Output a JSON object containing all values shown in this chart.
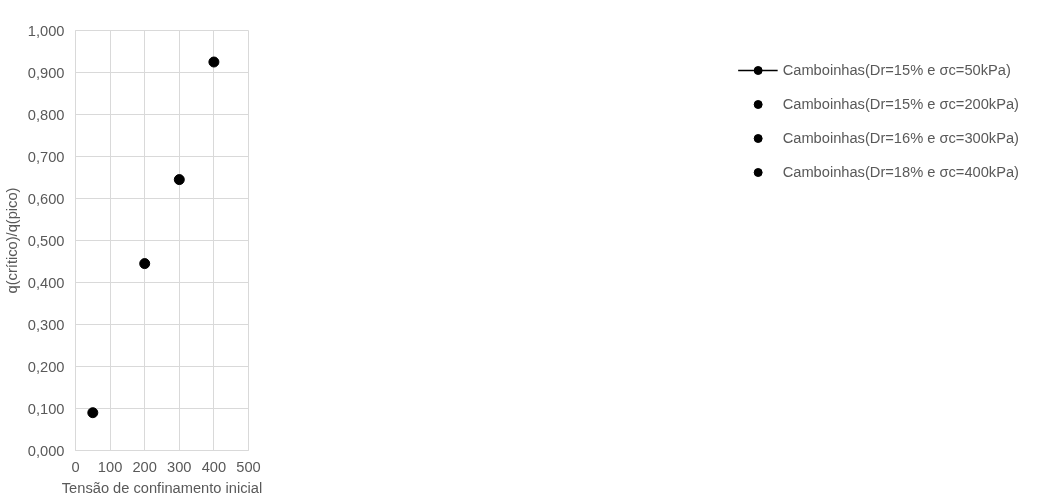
{
  "chart_data": {
    "type": "scatter",
    "xlabel": "Tensão de confinamento inicial",
    "ylabel": "q(crítico)/q(pico)",
    "series": [
      {
        "name": "Camboinhas(Dr=15% e σc=50kPa)",
        "color": "#000000",
        "type": "line",
        "x": [
          50
        ],
        "values": [
          0.09
        ]
      },
      {
        "name": "Camboinhas(Dr=15% e σc=200kPa)",
        "color": "#000000",
        "x": [
          200
        ],
        "values": [
          0.445
        ]
      },
      {
        "name": "Camboinhas(Dr=16% e σc=300kPa)",
        "color": "#000000",
        "x": [
          300
        ],
        "values": [
          0.645
        ]
      },
      {
        "name": "Camboinhas(Dr=18% e σc=400kPa)",
        "color": "#000000",
        "x": [
          400
        ],
        "values": [
          0.925
        ]
      }
    ],
    "xlim": [
      0,
      500
    ],
    "xticks": [
      0,
      100,
      200,
      300,
      400,
      500
    ],
    "ylim": [
      0,
      1
    ],
    "yticks": [
      {
        "value": 0,
        "label": "0,000"
      },
      {
        "value": 0.1,
        "label": "0,100"
      },
      {
        "value": 0.2,
        "label": "0,200"
      },
      {
        "value": 0.3,
        "label": "0,300"
      },
      {
        "value": 0.4,
        "label": "0,400"
      },
      {
        "value": 0.5,
        "label": "0,500"
      },
      {
        "value": 0.6,
        "label": "0,600"
      },
      {
        "value": 0.7,
        "label": "0,700"
      },
      {
        "value": 0.8,
        "label": "0,800"
      },
      {
        "value": 0.9,
        "label": "0,900"
      },
      {
        "value": 1,
        "label": "1,000"
      }
    ],
    "grid": true,
    "legend": "right",
    "marker": "circle"
  }
}
